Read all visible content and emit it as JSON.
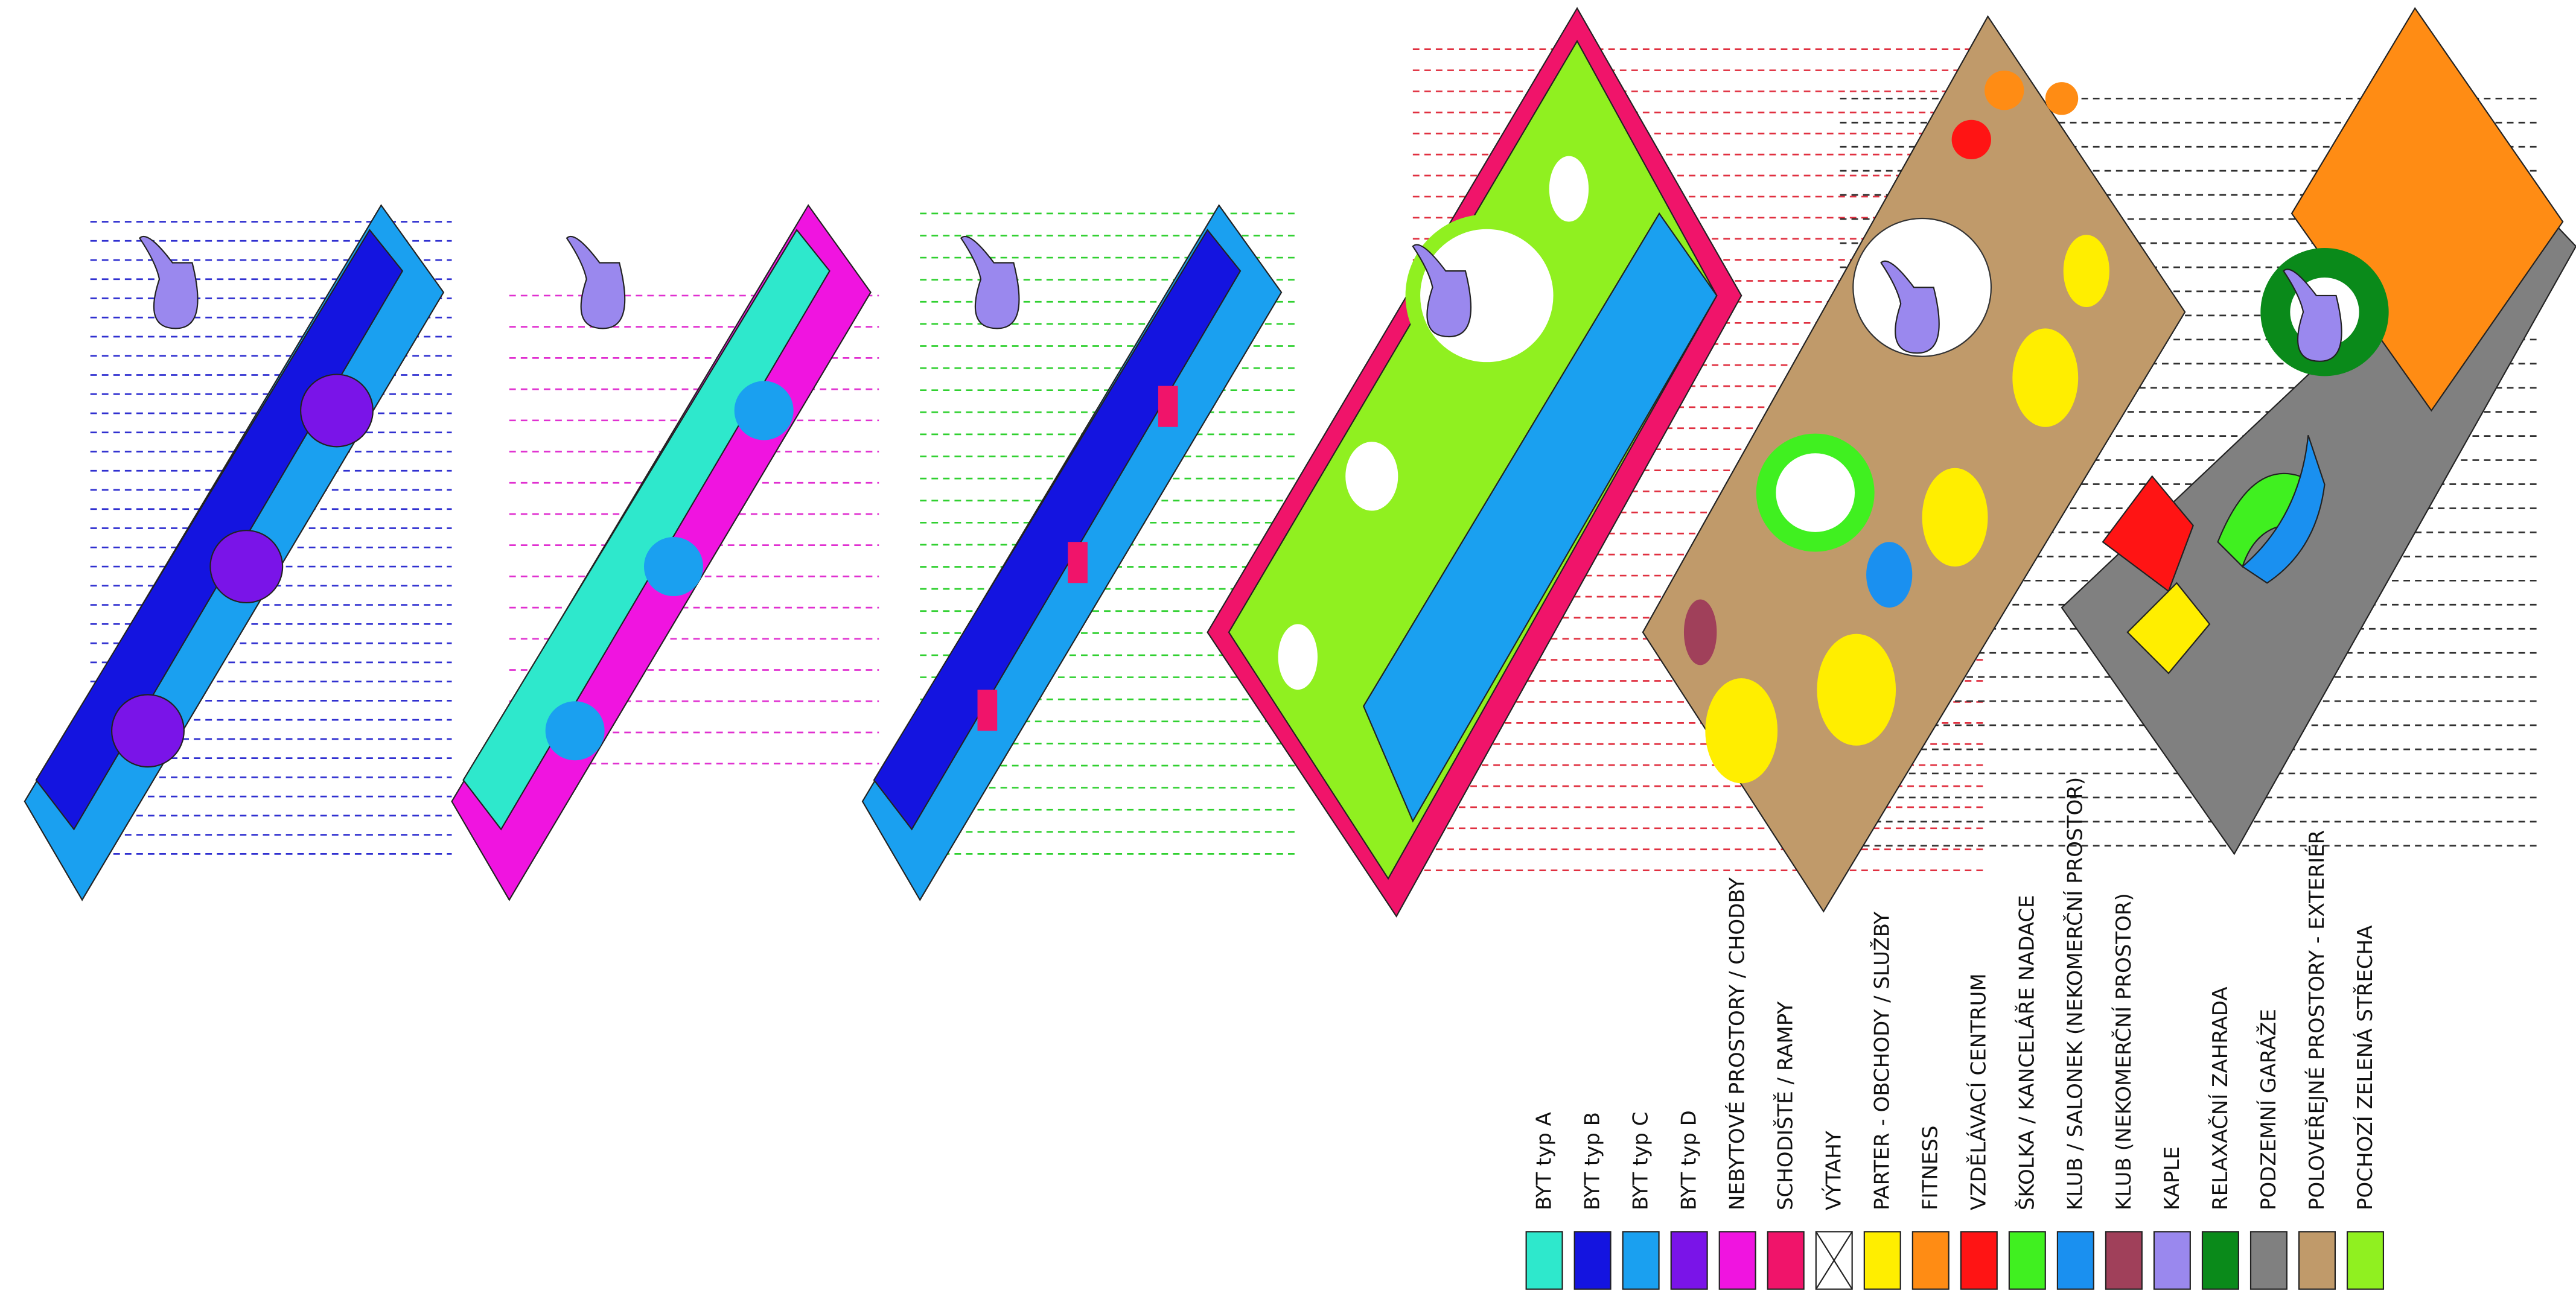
{
  "legend": {
    "items": [
      {
        "label": "BYT typ  A",
        "color": "#2ee8cc"
      },
      {
        "label": "BYT typ  B",
        "color": "#1414e0"
      },
      {
        "label": "BYT typ  C",
        "color": "#1aa0f0"
      },
      {
        "label": "BYT typ  D",
        "color": "#7a14e8"
      },
      {
        "label": "NEBYTOVÉ PROSTORY / CHODBY",
        "color": "#f014e0"
      },
      {
        "label": "SCHODIŠTĚ / RAMPY",
        "color": "#f0146a"
      },
      {
        "label": "VÝTAHY",
        "color": "#ffffff",
        "symbol": "cross"
      },
      {
        "label": "PARTER - OBCHODY / SLUŽBY",
        "color": "#ffee00"
      },
      {
        "label": "FITNESS",
        "color": "#ff8c14"
      },
      {
        "label": "VZDĚLÁVACÍ CENTRUM",
        "color": "#ff1414"
      },
      {
        "label": "ŠKOLKA / KANCELÁŘE NADACE",
        "color": "#40f020"
      },
      {
        "label": "KLUB / SALONEK (NEKOMERČNÍ PROSTOR)",
        "color": "#1a90f0"
      },
      {
        "label": "KLUB (NEKOMERČNÍ PROSTOR)",
        "color": "#a0405a"
      },
      {
        "label": "KAPLE",
        "color": "#9a88ee"
      },
      {
        "label": "RELAXAČNÍ ZAHRADA",
        "color": "#0a8a1a"
      },
      {
        "label": "PODZEMNÍ GARÁŽE",
        "color": "#808080"
      },
      {
        "label": "POLOVEŘEJNÉ PROSTORY - EXTERIÉR",
        "color": "#c09a6a"
      },
      {
        "label": "POCHOZÍ ZELENÁ STŘECHA",
        "color": "#90f020"
      }
    ]
  }
}
